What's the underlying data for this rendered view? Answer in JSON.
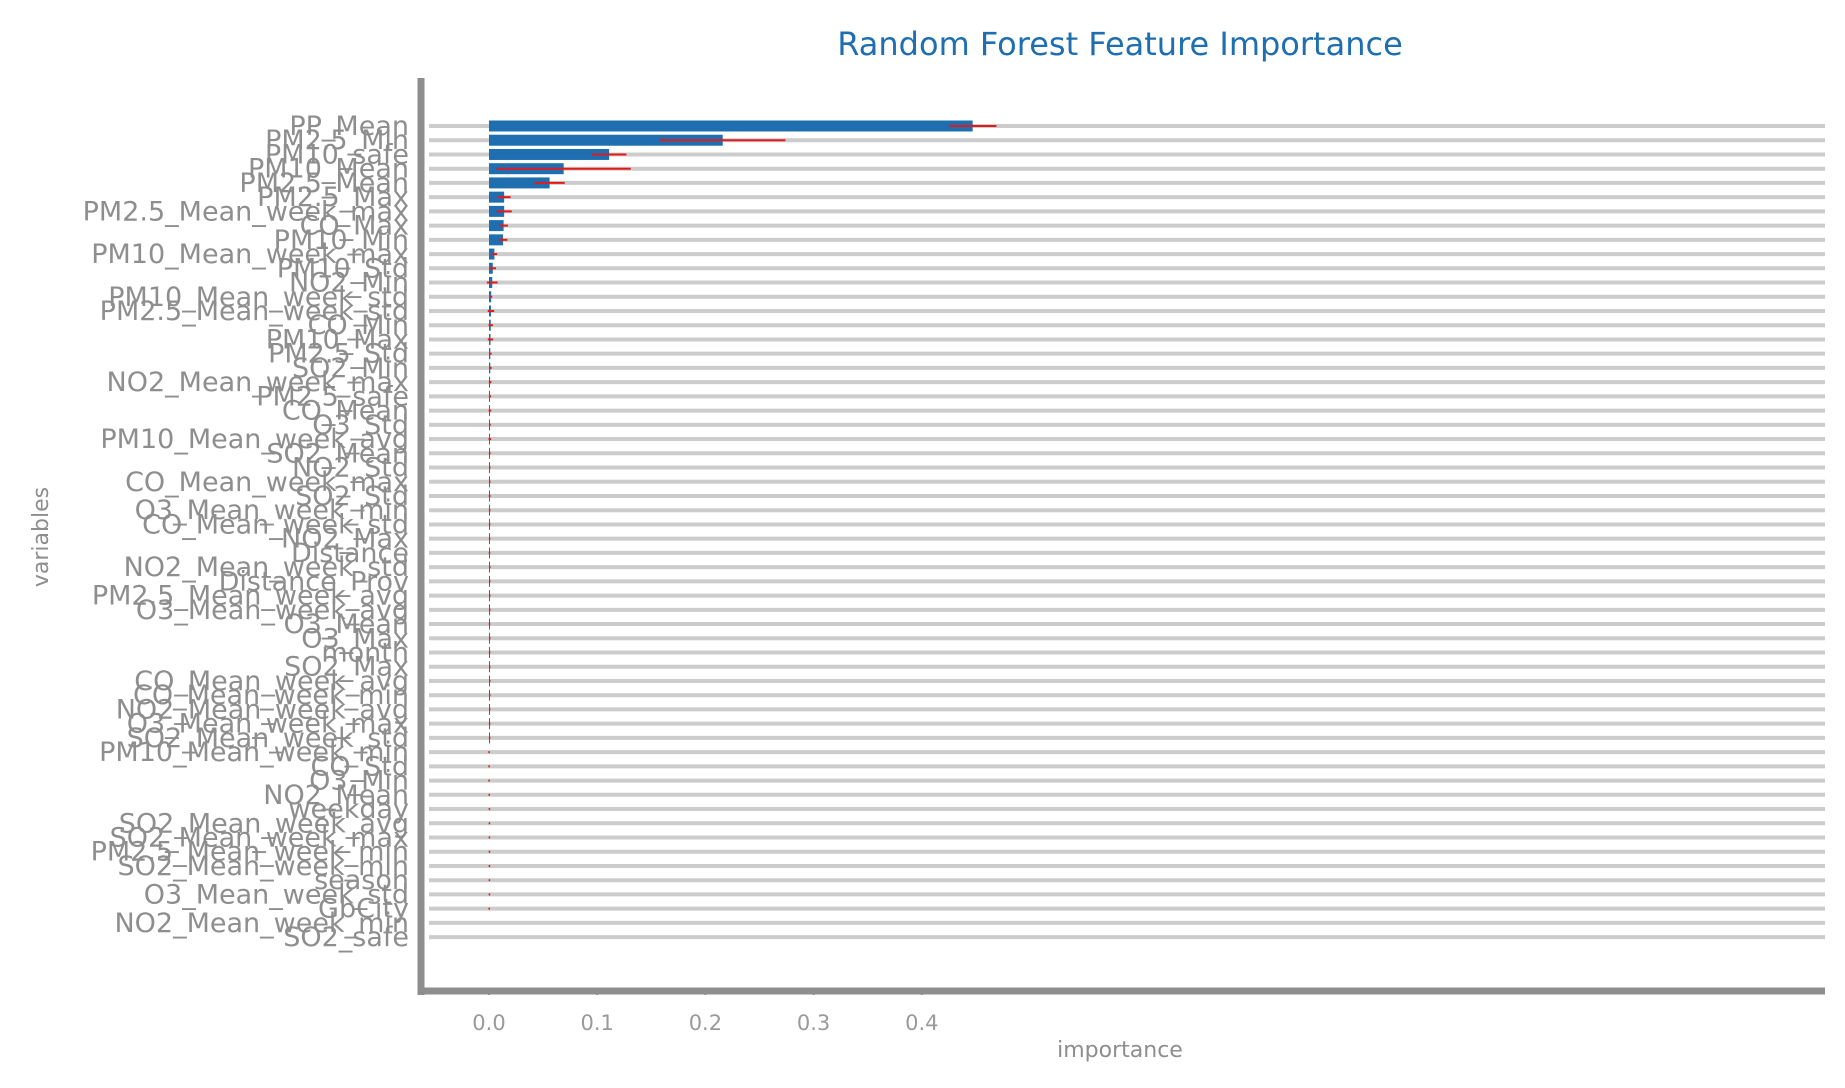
{
  "chart_data": {
    "type": "bar",
    "orientation": "horizontal",
    "title": "Random Forest Feature Importance",
    "xlabel": "importance",
    "ylabel": "variables",
    "xlim": [
      -0.025,
      0.49
    ],
    "xticks": [
      0.0,
      0.1,
      0.2,
      0.3,
      0.4
    ],
    "xtick_labels": [
      "0.0",
      "0.1",
      "0.2",
      "0.3",
      "0.4"
    ],
    "grid": true,
    "colors": {
      "bar": "#1f6fb0",
      "error": "#e31a1c",
      "grid": "#cccccc",
      "axis": "#8e8e8e",
      "title": "#1f6fb0"
    },
    "categories": [
      "PP_Mean",
      "PM2.5_Min",
      "PM10_safe",
      "PM10_Mean",
      "PM2.5_Mean",
      "PM2.5_Max",
      "PM2.5_Mean_week_max",
      "CO_Max",
      "PM10_Min",
      "PM10_Mean_week_max",
      "PM10_Std",
      "NO2_Min",
      "PM10_Mean_week_std",
      "PM2.5_Mean_week_std",
      "CO_Min",
      "PM10_Max",
      "PM2.5_Std",
      "SO2_Min",
      "NO2_Mean_week_max",
      "PM2.5_safe",
      "CO_Mean",
      "O3_Std",
      "PM10_Mean_week_avg",
      "SO2_Mean",
      "NO2_Std",
      "CO_Mean_week_max",
      "SO2_Std",
      "O3_Mean_week_min",
      "CO_Mean_week_std",
      "NO2_Max",
      "Distance",
      "NO2_Mean_week_std",
      "Distance_Prov",
      "PM2.5_Mean_week_avg",
      "O3_Mean_week_avg",
      "O3_Mean",
      "O3_Max",
      "month",
      "SO2_Max",
      "CO_Mean_week_avg",
      "CO_Mean_week_min",
      "NO2_Mean_week_avg",
      "O3_Mean_week_max",
      "SO2_Mean_week_std",
      "PM10_Mean_week_min",
      "CO_Std",
      "O3_Min",
      "NO2_Mean",
      "weekday",
      "SO2_Mean_week_avg",
      "SO2_Mean_week_max",
      "PM2.5_Mean_week_min",
      "SO2_Mean_week_min",
      "season",
      "O3_Mean_week_std",
      "GbCity",
      "NO2_Mean_week_min",
      "SO2_safe"
    ],
    "values": [
      0.447,
      0.216,
      0.111,
      0.069,
      0.056,
      0.014,
      0.014,
      0.0135,
      0.013,
      0.005,
      0.0035,
      0.003,
      0.002,
      0.0018,
      0.0016,
      0.0014,
      0.0012,
      0.0012,
      0.001,
      0.0009,
      0.0009,
      0.0008,
      0.0008,
      0.0007,
      0.0006,
      0.0006,
      0.0006,
      0.0005,
      0.0005,
      0.0005,
      0.0004,
      0.0004,
      0.0004,
      0.0004,
      0.0003,
      0.0003,
      0.0003,
      0.0003,
      0.0003,
      0.0003,
      0.0003,
      0.0003,
      0.0002,
      0.0002,
      0.0,
      0.0,
      0.0,
      0.0,
      0.0,
      0.0,
      0.0,
      0.0,
      0.0,
      0.0,
      0.0,
      0.0,
      0.0,
      0.0
    ],
    "errors": [
      0.022,
      0.058,
      0.016,
      0.062,
      0.014,
      0.006,
      0.007,
      0.004,
      0.004,
      0.0025,
      0.003,
      0.005,
      0.001,
      0.003,
      0.002,
      0.0025,
      0.0012,
      0.0012,
      0.0012,
      0.001,
      0.0012,
      0.0008,
      0.0012,
      0.0008,
      0.0006,
      0.0006,
      0.0008,
      0.0006,
      0.0006,
      0.0006,
      0.0006,
      0.0004,
      0.0004,
      0.0004,
      0.0003,
      0.0005,
      0.0003,
      0.0004,
      0.0003,
      0.0003,
      0.0003,
      0.0003,
      0.0003,
      0.0003,
      0.0006,
      0.0006,
      0.0006,
      0.0005,
      0.0003,
      0.0003,
      0.0003,
      0.0003,
      0.0003,
      0.0003,
      0.0003,
      0.0005,
      0.0,
      0.0
    ]
  }
}
